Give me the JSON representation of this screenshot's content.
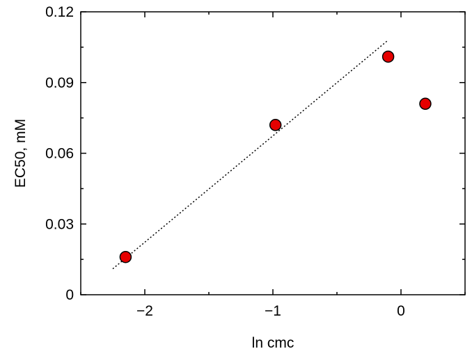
{
  "chart_data": {
    "type": "scatter",
    "title": "",
    "xlabel": "ln cmc",
    "ylabel": "EC50, mM",
    "xlim": [
      -2.5,
      0.5
    ],
    "ylim": [
      0,
      0.12
    ],
    "x_ticks": [
      -2,
      -1,
      0
    ],
    "x_tick_labels": [
      "−2",
      "−1",
      "0"
    ],
    "y_ticks": [
      0,
      0.03,
      0.06,
      0.09,
      0.12
    ],
    "y_tick_labels": [
      "0",
      "0.03",
      "0.06",
      "0.09",
      "0.12"
    ],
    "grid": false,
    "legend": "none",
    "series": [
      {
        "type": "scatter",
        "x": [
          -2.15,
          -0.98,
          -0.1,
          0.19
        ],
        "y": [
          0.016,
          0.072,
          0.101,
          0.081
        ],
        "marker_color": "#e60000",
        "marker_edge": "#000000"
      }
    ],
    "fit_line": {
      "style": "dotted",
      "color": "#000000",
      "x": [
        -2.25,
        -0.1
      ],
      "y": [
        0.011,
        0.108
      ]
    }
  }
}
